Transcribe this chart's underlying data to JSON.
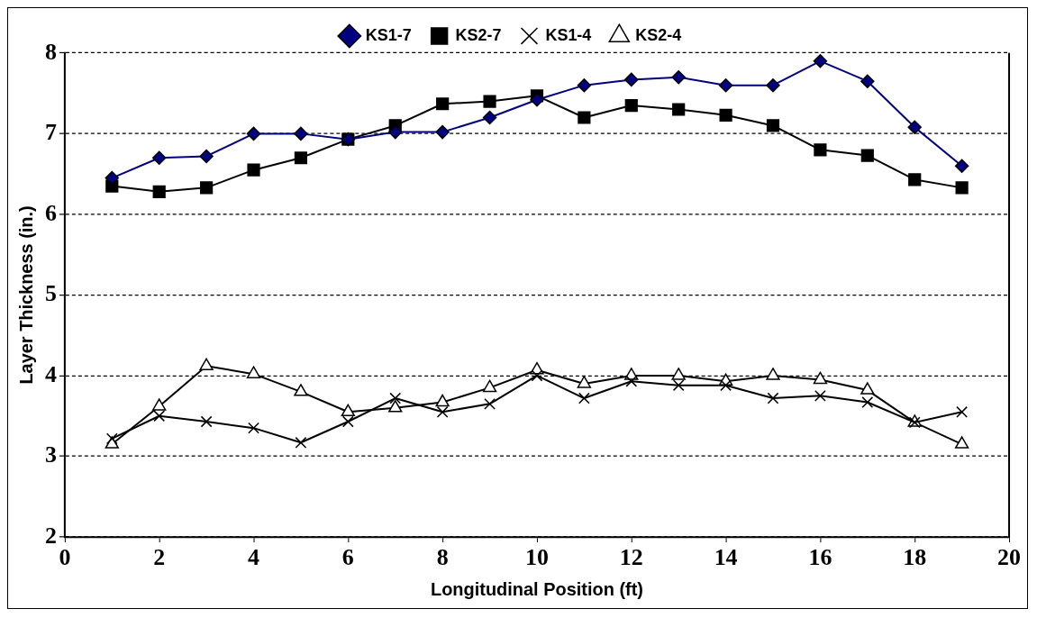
{
  "chart_data": {
    "type": "line",
    "xlabel": "Longitudinal Position (ft)",
    "ylabel": "Layer Thickness (in.)",
    "x": [
      1,
      2,
      3,
      4,
      5,
      6,
      7,
      8,
      9,
      10,
      11,
      12,
      13,
      14,
      15,
      16,
      17,
      18,
      19
    ],
    "xlim": [
      0,
      20
    ],
    "xticks": [
      0,
      2,
      4,
      6,
      8,
      10,
      12,
      14,
      16,
      18,
      20
    ],
    "ylim": [
      2,
      8
    ],
    "yticks": [
      2,
      3,
      4,
      5,
      6,
      7,
      8
    ],
    "grid": "y",
    "legend": "top",
    "series": [
      {
        "name": "KS1-7",
        "color": "#000080",
        "marker": "diamond",
        "values": [
          6.45,
          6.7,
          6.72,
          7.0,
          7.0,
          6.93,
          7.02,
          7.02,
          7.2,
          7.42,
          7.6,
          7.67,
          7.7,
          7.6,
          7.6,
          7.9,
          7.65,
          7.08,
          6.6
        ]
      },
      {
        "name": "KS2-7",
        "color": "#000000",
        "marker": "square",
        "values": [
          6.35,
          6.28,
          6.33,
          6.55,
          6.7,
          6.93,
          7.1,
          7.37,
          7.4,
          7.47,
          7.2,
          7.35,
          7.3,
          7.23,
          7.1,
          6.8,
          6.73,
          6.43,
          6.33
        ]
      },
      {
        "name": "KS1-4",
        "color": "#000000",
        "marker": "cross",
        "values": [
          3.22,
          3.5,
          3.43,
          3.35,
          3.17,
          3.43,
          3.72,
          3.55,
          3.65,
          4.0,
          3.72,
          3.93,
          3.88,
          3.88,
          3.72,
          3.75,
          3.67,
          3.42,
          3.55
        ]
      },
      {
        "name": "KS2-4",
        "color": "#000000",
        "marker": "triangle",
        "values": [
          3.15,
          3.62,
          4.12,
          4.02,
          3.8,
          3.55,
          3.6,
          3.67,
          3.85,
          4.07,
          3.9,
          4.0,
          4.0,
          3.93,
          4.0,
          3.95,
          3.82,
          3.42,
          3.15
        ]
      }
    ]
  }
}
